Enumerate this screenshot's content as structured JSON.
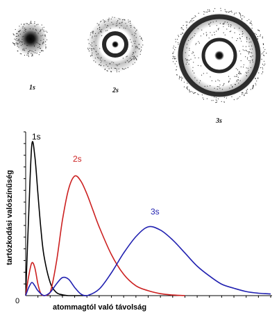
{
  "orbitals": [
    {
      "label": "1s"
    },
    {
      "label": "2s"
    },
    {
      "label": "3s"
    }
  ],
  "chart_data": {
    "type": "line",
    "xlabel": "atommagtól való távolság",
    "ylabel": "tartózkodási valószínűség",
    "origin_label": "0",
    "xlim": [
      0,
      20
    ],
    "ylim": [
      0,
      1
    ],
    "grid": false,
    "legend": "labels placed next to each curve",
    "series": [
      {
        "name": "1s",
        "color": "#000000",
        "x": [
          0,
          0.25,
          0.5,
          0.75,
          1,
          1.25,
          1.5,
          2,
          2.5,
          3,
          3.5,
          4,
          4.5,
          5
        ],
        "y": [
          0,
          0.5,
          0.92,
          0.85,
          0.62,
          0.4,
          0.24,
          0.08,
          0.02,
          0.005,
          0,
          0,
          0,
          0
        ]
      },
      {
        "name": "2s",
        "color": "#cc2020",
        "x": [
          0,
          0.25,
          0.5,
          0.75,
          1,
          1.25,
          1.5,
          2,
          2.5,
          3,
          3.5,
          4,
          4.5,
          5,
          5.5,
          6,
          7,
          8,
          9,
          10,
          11,
          12,
          13
        ],
        "y": [
          0,
          0.12,
          0.2,
          0.17,
          0.07,
          0.01,
          0,
          0.02,
          0.2,
          0.46,
          0.65,
          0.73,
          0.7,
          0.62,
          0.52,
          0.42,
          0.25,
          0.13,
          0.06,
          0.03,
          0.012,
          0.004,
          0
        ]
      },
      {
        "name": "3s",
        "color": "#2020b0",
        "x": [
          0,
          0.25,
          0.5,
          0.75,
          1,
          1.5,
          2,
          2.5,
          3,
          3.5,
          4,
          4.5,
          5,
          6,
          7,
          8,
          9,
          10,
          11,
          12,
          13,
          14,
          15,
          16,
          17,
          18,
          19,
          20
        ],
        "y": [
          0,
          0.05,
          0.08,
          0.06,
          0.03,
          0,
          0.02,
          0.07,
          0.11,
          0.1,
          0.05,
          0.01,
          0,
          0.04,
          0.14,
          0.26,
          0.36,
          0.42,
          0.4,
          0.34,
          0.26,
          0.18,
          0.12,
          0.07,
          0.045,
          0.025,
          0.015,
          0.01
        ]
      }
    ]
  }
}
